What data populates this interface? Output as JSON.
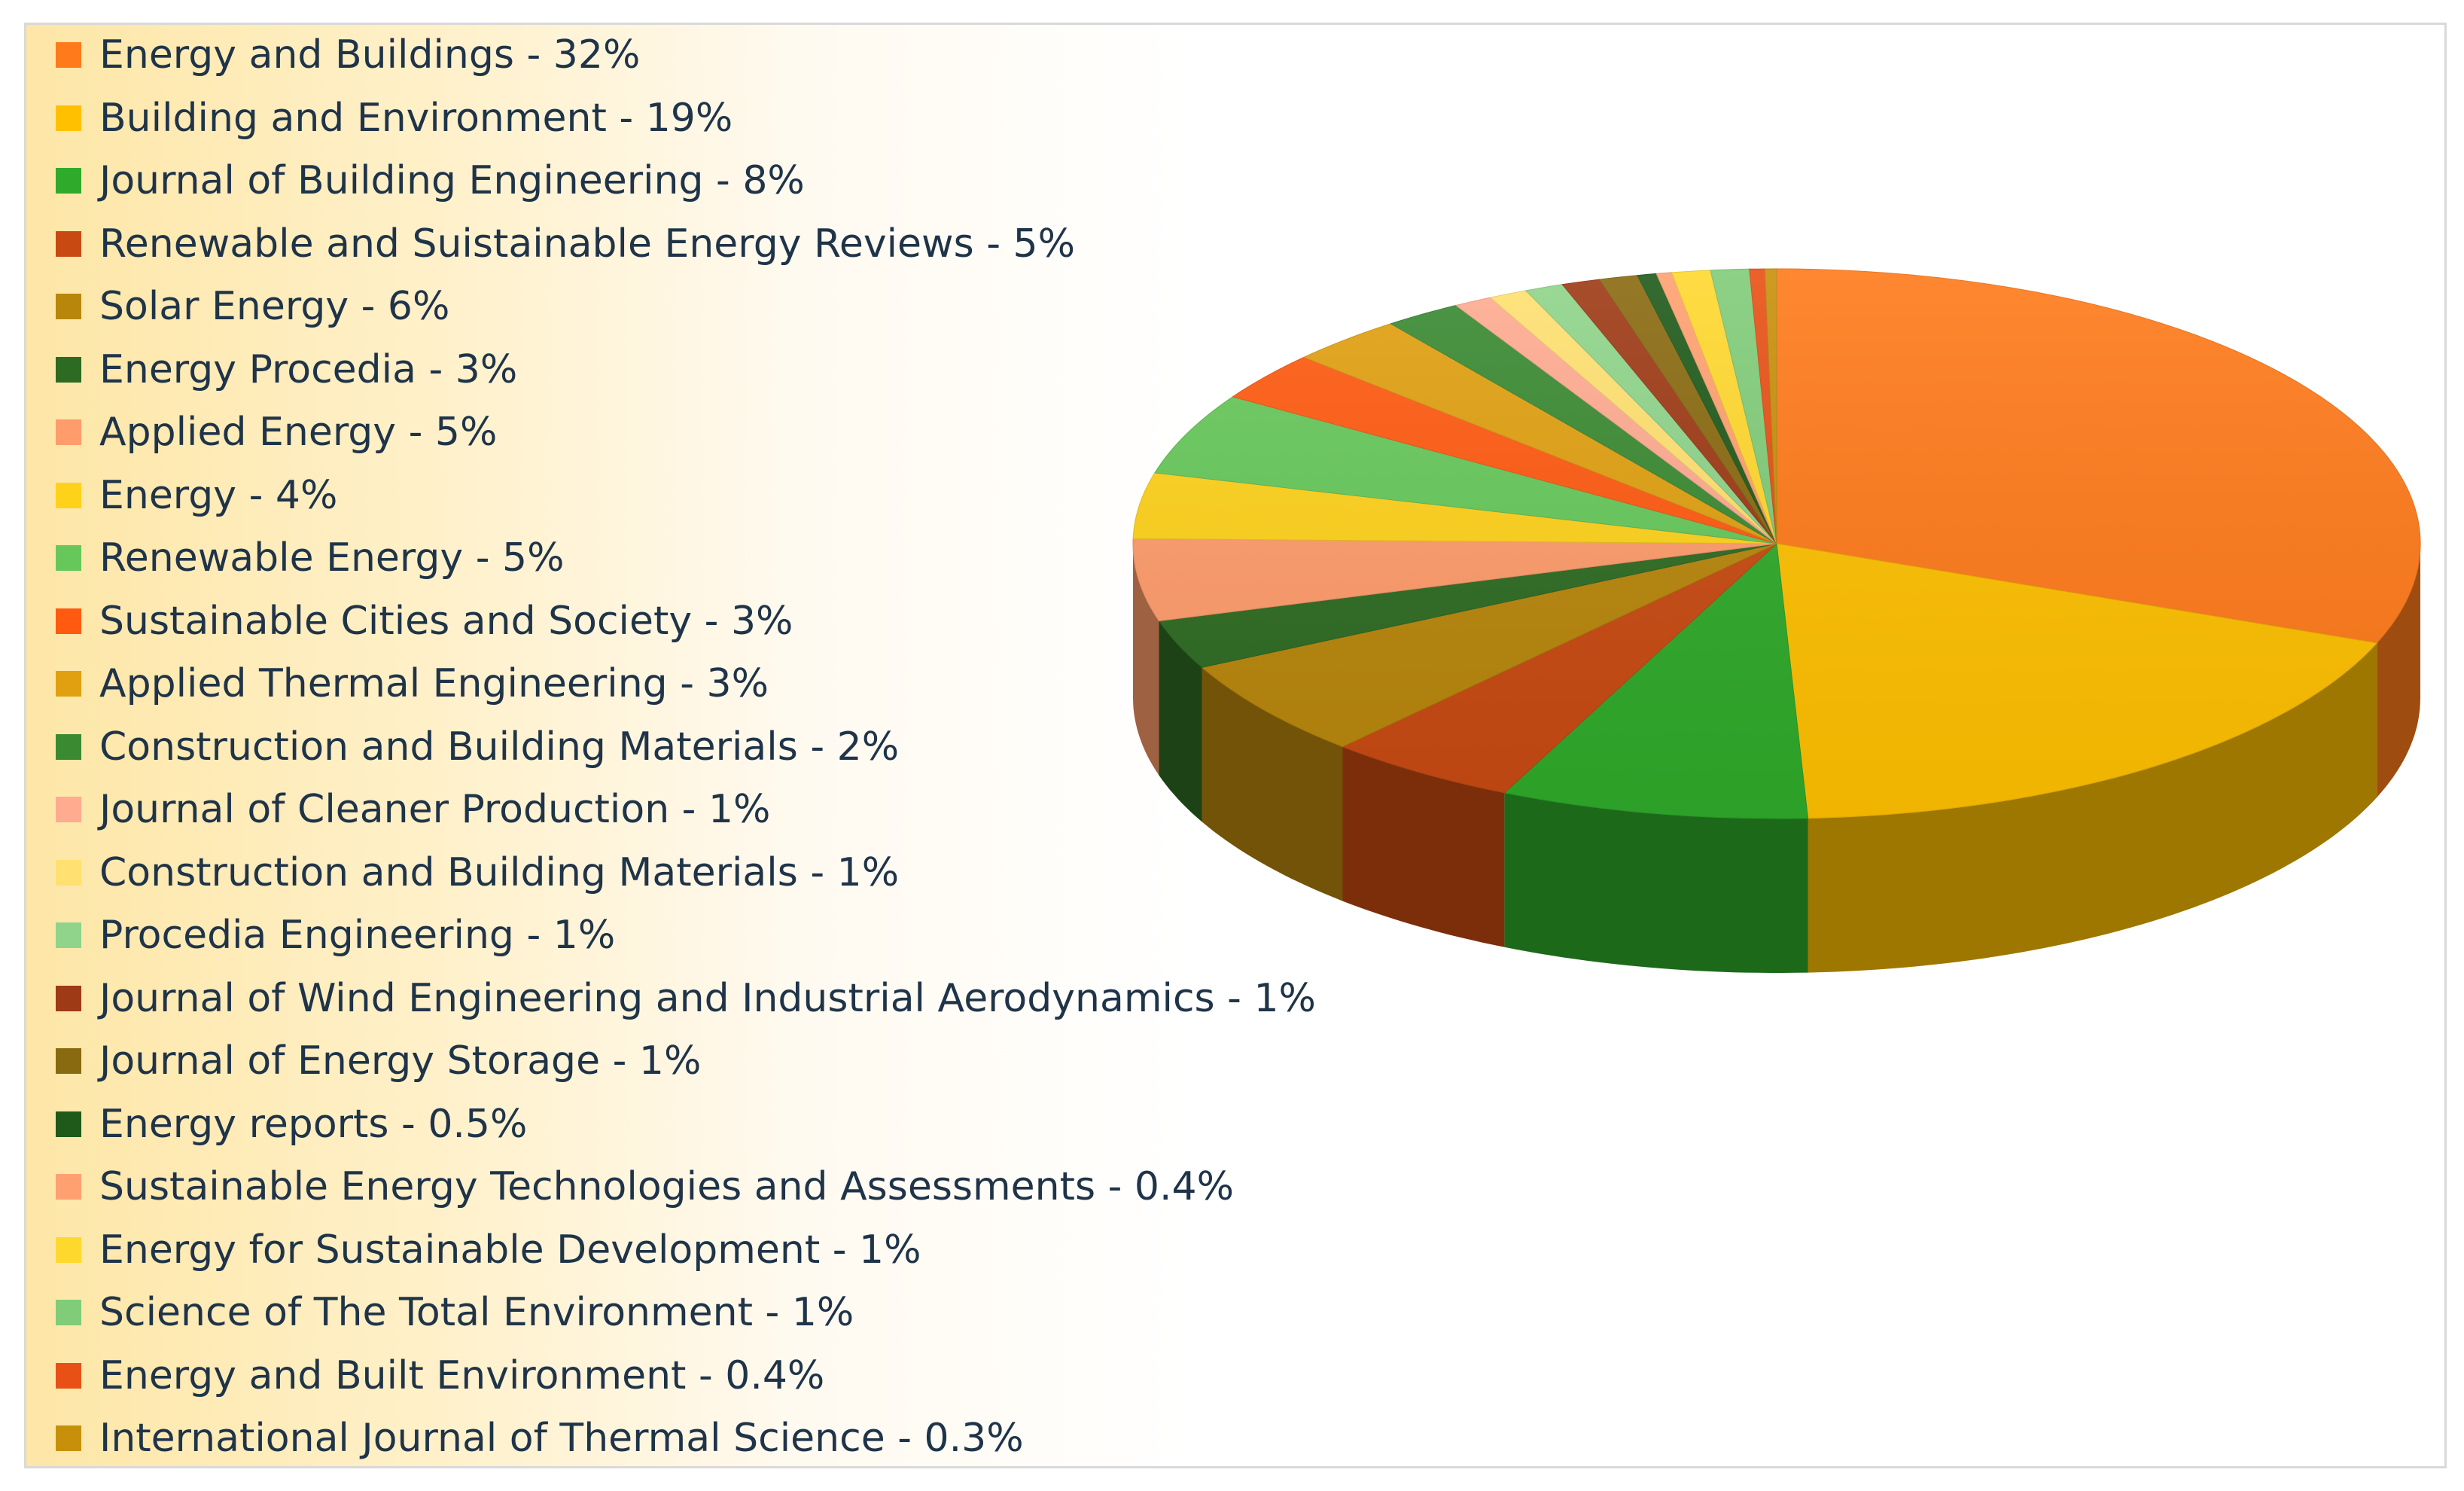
{
  "chart_data": {
    "type": "pie",
    "title": "",
    "legend_position": "left",
    "slices": [
      {
        "label": "Energy and Buildings - 32%",
        "value": 32,
        "color": "#ff7a1a"
      },
      {
        "label": "Building and Environment - 19%",
        "value": 19,
        "color": "#ffc000"
      },
      {
        "label": "Journal of Building Engineering - 8%",
        "value": 8,
        "color": "#2faa2a"
      },
      {
        "label": "Renewable and Suistainable Energy Reviews - 5%",
        "value": 5,
        "color": "#c84a12"
      },
      {
        "label": "Solar Energy - 6%",
        "value": 6,
        "color": "#b8860b"
      },
      {
        "label": "Energy Procedia - 3%",
        "value": 3,
        "color": "#2e6b22"
      },
      {
        "label": "Applied Energy - 5%",
        "value": 5,
        "color": "#ff9c6b"
      },
      {
        "label": "Energy - 4%",
        "value": 4,
        "color": "#ffd21a"
      },
      {
        "label": "Renewable Energy - 5%",
        "value": 5,
        "color": "#66c85a"
      },
      {
        "label": "Sustainable Cities and Society - 3%",
        "value": 3,
        "color": "#ff5a10"
      },
      {
        "label": "Applied Thermal Engineering - 3%",
        "value": 3,
        "color": "#e0a010"
      },
      {
        "label": "Construction and Building Materials - 2%",
        "value": 2,
        "color": "#3a8a32"
      },
      {
        "label": "Journal of Cleaner Production - 1%",
        "value": 1,
        "color": "#ffab90"
      },
      {
        "label": "Construction and Building Materials - 1%",
        "value": 1,
        "color": "#ffe070"
      },
      {
        "label": "Procedia Engineering - 1%",
        "value": 1,
        "color": "#8fd48a"
      },
      {
        "label": "Journal of Wind Engineering and Industrial Aerodynamics - 1%",
        "value": 1,
        "color": "#9e3a15"
      },
      {
        "label": "Journal of Energy Storage - 1%",
        "value": 1,
        "color": "#8a6a10"
      },
      {
        "label": "Energy reports - 0.5%",
        "value": 0.5,
        "color": "#1f5a1a"
      },
      {
        "label": "Sustainable Energy Technologies and Assessments - 0.4%",
        "value": 0.4,
        "color": "#ffa070"
      },
      {
        "label": "Energy for Sustainable Development - 1%",
        "value": 1,
        "color": "#ffd82e"
      },
      {
        "label": "Science of The Total Environment - 1%",
        "value": 1,
        "color": "#80cc78"
      },
      {
        "label": "Energy and Built Environment - 0.4%",
        "value": 0.4,
        "color": "#e85015"
      },
      {
        "label": "International Journal of Thermal Science - 0.3%",
        "value": 0.3,
        "color": "#c8900a"
      }
    ]
  }
}
